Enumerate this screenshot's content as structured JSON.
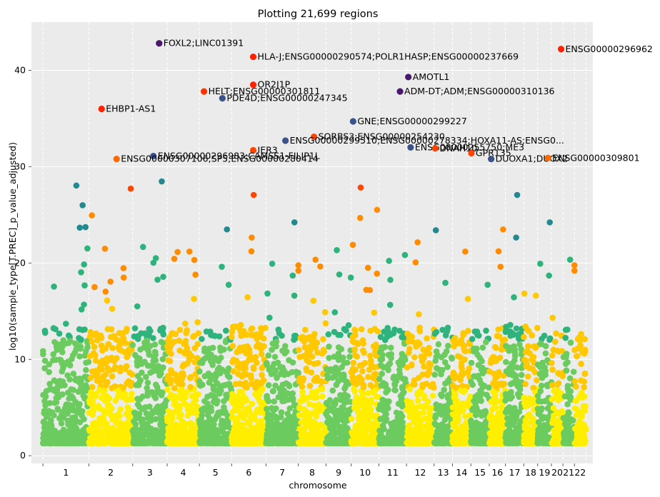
{
  "chart_data": {
    "type": "scatter",
    "title": "Plotting 21,699 regions",
    "xlabel": "chromosome",
    "ylabel": "log10(sample_type[T.PREC]_p_value_adjusted)",
    "ylim": [
      -0.8,
      45
    ],
    "y_ticks": [
      0,
      10,
      20,
      30,
      40
    ],
    "grid": true,
    "background": "#EBEBEB",
    "chromosomes": [
      {
        "label": "1",
        "start": 0,
        "end": 2000
      },
      {
        "label": "2",
        "start": 2000,
        "end": 3900
      },
      {
        "label": "3",
        "start": 3900,
        "end": 5400
      },
      {
        "label": "4",
        "start": 5400,
        "end": 6800
      },
      {
        "label": "5",
        "start": 6800,
        "end": 8200
      },
      {
        "label": "6",
        "start": 8200,
        "end": 9700
      },
      {
        "label": "7",
        "start": 9700,
        "end": 11100
      },
      {
        "label": "8",
        "start": 11100,
        "end": 12300
      },
      {
        "label": "9",
        "start": 12300,
        "end": 13400
      },
      {
        "label": "10",
        "start": 13400,
        "end": 14600
      },
      {
        "label": "11",
        "start": 14600,
        "end": 15800
      },
      {
        "label": "12",
        "start": 15800,
        "end": 17000
      },
      {
        "label": "13",
        "start": 17000,
        "end": 17800
      },
      {
        "label": "14",
        "start": 17800,
        "end": 18600
      },
      {
        "label": "15",
        "start": 18600,
        "end": 19400
      },
      {
        "label": "16",
        "start": 19400,
        "end": 20100
      },
      {
        "label": "17",
        "start": 20100,
        "end": 20900
      },
      {
        "label": "18",
        "start": 20900,
        "end": 21500
      },
      {
        "label": "19",
        "start": 21500,
        "end": 22100
      },
      {
        "label": "20",
        "start": 22100,
        "end": 22600
      },
      {
        "label": "21",
        "start": 22600,
        "end": 23100
      },
      {
        "label": "22",
        "start": 23100,
        "end": 23600
      }
    ],
    "color_palette": {
      "low": "#FFEE00",
      "mid1": "#FFC800",
      "mid2": "#FF8C00",
      "high1": "#FF4500",
      "high2": "#E8210F",
      "green1": "#6CCB5F",
      "green2": "#2EB37C",
      "teal": "#23898E",
      "navy": "#3B528B",
      "purple": "#48186A"
    },
    "labeled_points": [
      {
        "label": "FOXL2;LINC01391",
        "x": 5050,
        "y": 42.8,
        "color": "#48186A"
      },
      {
        "label": "HLA-J;ENSG00000290574;POLR1HASP;ENSG00000237669",
        "x": 9140,
        "y": 41.4,
        "color": "#FF2200"
      },
      {
        "label": "ENSG00000296962",
        "x": 22520,
        "y": 42.2,
        "color": "#FF2200"
      },
      {
        "label": "AMOTL1",
        "x": 15880,
        "y": 39.3,
        "color": "#48186A"
      },
      {
        "label": "OR2J1P",
        "x": 9140,
        "y": 38.5,
        "color": "#FF2200"
      },
      {
        "label": "HELT;ENSG00000301811",
        "x": 7000,
        "y": 37.8,
        "color": "#FF3300"
      },
      {
        "label": "ADM-DT;ADM;ENSG00000310136",
        "x": 15520,
        "y": 37.8,
        "color": "#48186A"
      },
      {
        "label": "PDE4D;ENSG00000247345",
        "x": 7800,
        "y": 37.1,
        "color": "#3B528B"
      },
      {
        "label": "EHBP1-AS1",
        "x": 2550,
        "y": 36.0,
        "color": "#FF2200"
      },
      {
        "label": "GNE;ENSG00000299227",
        "x": 13480,
        "y": 34.7,
        "color": "#3B528B"
      },
      {
        "label": "SORBS3;ENSG00000254230",
        "x": 11780,
        "y": 33.1,
        "color": "#FF4500"
      },
      {
        "label": "ENSG00000299510;ENSG00000278334;HOXA11-AS;ENSG0...",
        "x": 10540,
        "y": 32.7,
        "color": "#3B528B"
      },
      {
        "label": "ENSG00000255750;ME3",
        "x": 15980,
        "y": 32.0,
        "color": "#3B528B"
      },
      {
        "label": "DNAH10",
        "x": 17050,
        "y": 31.9,
        "color": "#FF4500"
      },
      {
        "label": "IER3",
        "x": 9140,
        "y": 31.7,
        "color": "#FF4500"
      },
      {
        "label": "GPR135",
        "x": 18620,
        "y": 31.4,
        "color": "#FF4500"
      },
      {
        "label": "ENSG00000296983;CAMSS1-FILIP1L",
        "x": 4800,
        "y": 31.1,
        "color": "#3B528B"
      },
      {
        "label": "ENSG00000307106;SP5;ENSG00000280414",
        "x": 3200,
        "y": 30.8,
        "color": "#FF6A00"
      },
      {
        "label": "DUOXA1;DUOX2",
        "x": 19480,
        "y": 30.8,
        "color": "#3B528B"
      },
      {
        "label": "ENSG00000309801",
        "x": 21950,
        "y": 30.9,
        "color": "#FF6A00"
      }
    ]
  }
}
